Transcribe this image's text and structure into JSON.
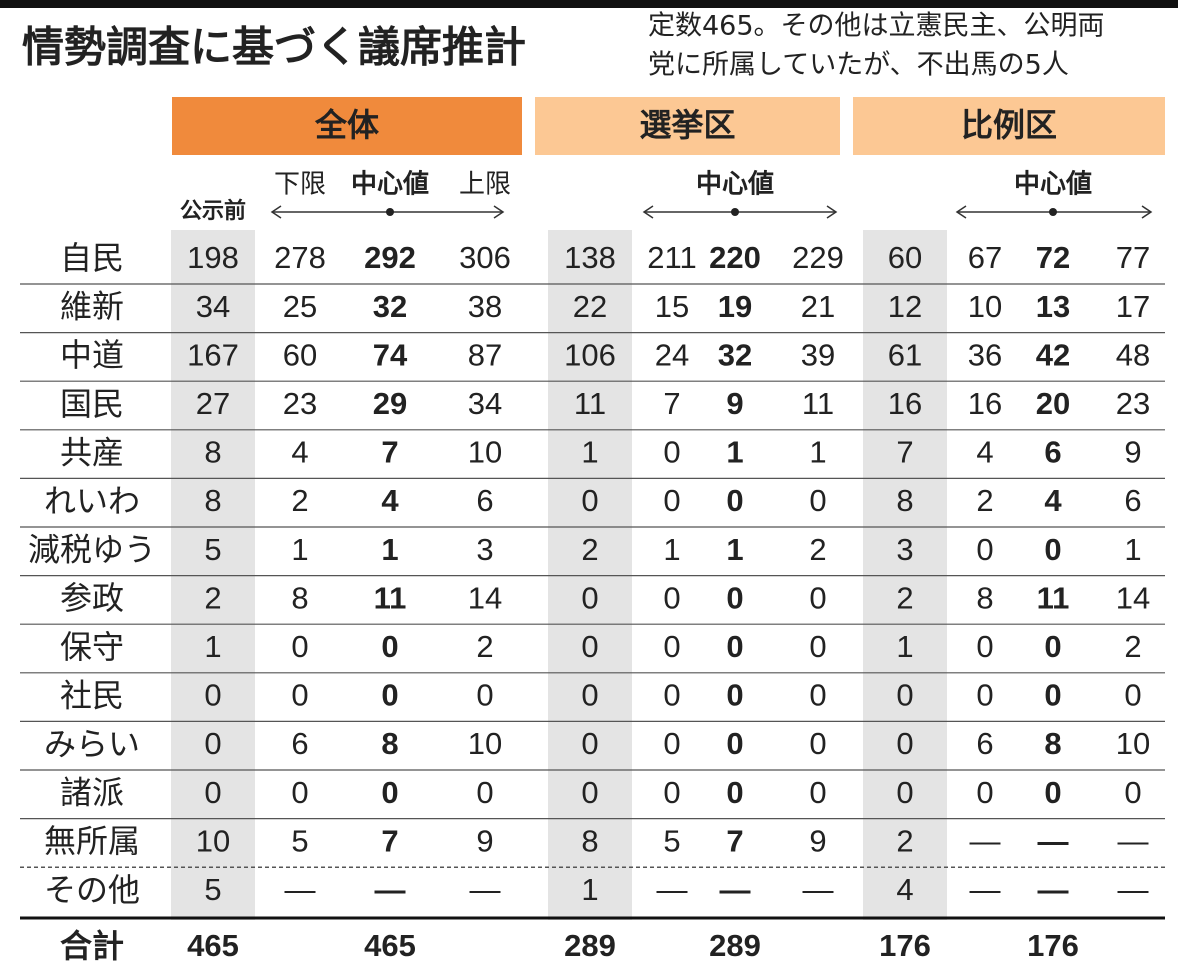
{
  "title": "情勢調査に基づく議席推計",
  "note": [
    "定数465。その他は立憲民主、公明両",
    "党に所属していたが、不出馬の5人"
  ],
  "before_label": "公示前",
  "groups": [
    {
      "name": "全体",
      "columns": [
        "下限",
        "中心値",
        "上限"
      ]
    },
    {
      "name": "選挙区",
      "columns": [
        "中心値"
      ]
    },
    {
      "name": "比例区",
      "columns": [
        "中心値"
      ]
    }
  ],
  "rows": [
    {
      "party": "自民",
      "cells": [
        198,
        278,
        292,
        306,
        138,
        211,
        220,
        229,
        60,
        67,
        72,
        77
      ]
    },
    {
      "party": "維新",
      "cells": [
        34,
        25,
        32,
        38,
        22,
        15,
        19,
        21,
        12,
        10,
        13,
        17
      ]
    },
    {
      "party": "中道",
      "cells": [
        167,
        60,
        74,
        87,
        106,
        24,
        32,
        39,
        61,
        36,
        42,
        48
      ]
    },
    {
      "party": "国民",
      "cells": [
        27,
        23,
        29,
        34,
        11,
        7,
        9,
        11,
        16,
        16,
        20,
        23
      ]
    },
    {
      "party": "共産",
      "cells": [
        8,
        4,
        7,
        10,
        1,
        0,
        1,
        1,
        7,
        4,
        6,
        9
      ]
    },
    {
      "party": "れいわ",
      "cells": [
        8,
        2,
        4,
        6,
        0,
        0,
        0,
        0,
        8,
        2,
        4,
        6
      ]
    },
    {
      "party": "減税ゆう",
      "cells": [
        5,
        1,
        1,
        3,
        2,
        1,
        1,
        2,
        3,
        0,
        0,
        1
      ]
    },
    {
      "party": "参政",
      "cells": [
        2,
        8,
        11,
        14,
        0,
        0,
        0,
        0,
        2,
        8,
        11,
        14
      ]
    },
    {
      "party": "保守",
      "cells": [
        1,
        0,
        0,
        2,
        0,
        0,
        0,
        0,
        1,
        0,
        0,
        2
      ]
    },
    {
      "party": "社民",
      "cells": [
        0,
        0,
        0,
        0,
        0,
        0,
        0,
        0,
        0,
        0,
        0,
        0
      ]
    },
    {
      "party": "みらい",
      "cells": [
        0,
        6,
        8,
        10,
        0,
        0,
        0,
        0,
        0,
        6,
        8,
        10
      ]
    },
    {
      "party": "諸派",
      "cells": [
        0,
        0,
        0,
        0,
        0,
        0,
        0,
        0,
        0,
        0,
        0,
        0
      ]
    },
    {
      "party": "無所属",
      "cells": [
        10,
        5,
        7,
        9,
        8,
        5,
        7,
        9,
        2,
        "—",
        "—",
        "—"
      ]
    },
    {
      "party": "その他",
      "cells": [
        5,
        "—",
        "—",
        "—",
        1,
        "—",
        "—",
        "—",
        4,
        "—",
        "—",
        "—"
      ]
    }
  ],
  "total": {
    "label": "合計",
    "cells": [
      465,
      465,
      289,
      289,
      176,
      176
    ]
  }
}
